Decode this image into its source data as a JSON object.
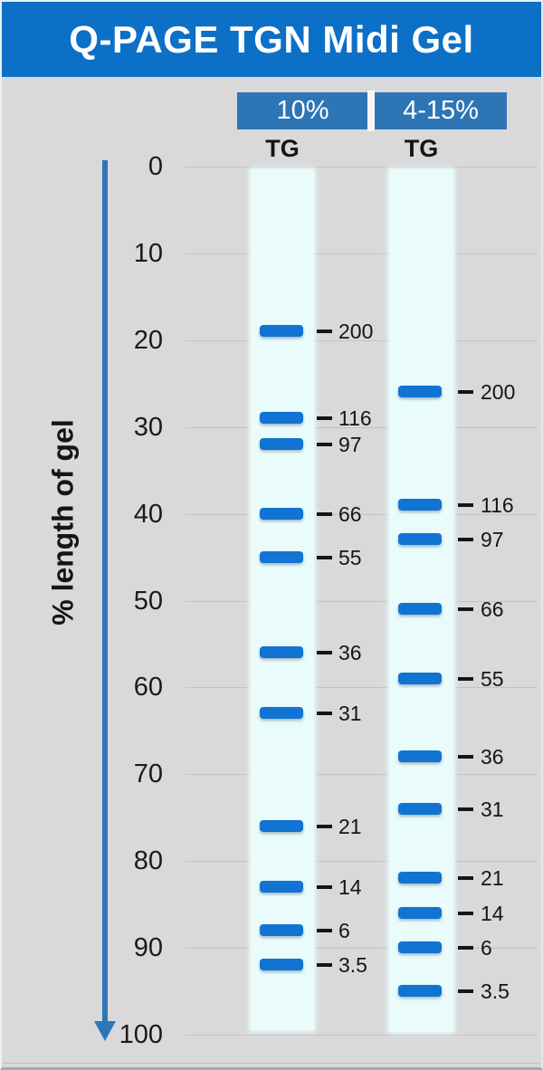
{
  "title": "Q-PAGE TGN Midi Gel",
  "y_axis": {
    "label": "% length of gel",
    "ticks": [
      0,
      10,
      20,
      30,
      40,
      50,
      60,
      70,
      80,
      90,
      100
    ]
  },
  "lanes": [
    {
      "header": "10%",
      "gel_type": "TG",
      "bands": [
        {
          "mw": "200",
          "pct": 19
        },
        {
          "mw": "116",
          "pct": 29
        },
        {
          "mw": "97",
          "pct": 32
        },
        {
          "mw": "66",
          "pct": 40
        },
        {
          "mw": "55",
          "pct": 45
        },
        {
          "mw": "36",
          "pct": 56
        },
        {
          "mw": "31",
          "pct": 63
        },
        {
          "mw": "21",
          "pct": 76
        },
        {
          "mw": "14",
          "pct": 83
        },
        {
          "mw": "6",
          "pct": 88
        },
        {
          "mw": "3.5",
          "pct": 92
        }
      ]
    },
    {
      "header": "4-15%",
      "gel_type": "TG",
      "bands": [
        {
          "mw": "200",
          "pct": 26
        },
        {
          "mw": "116",
          "pct": 39
        },
        {
          "mw": "97",
          "pct": 43
        },
        {
          "mw": "66",
          "pct": 51
        },
        {
          "mw": "55",
          "pct": 59
        },
        {
          "mw": "36",
          "pct": 68
        },
        {
          "mw": "31",
          "pct": 74
        },
        {
          "mw": "21",
          "pct": 82
        },
        {
          "mw": "14",
          "pct": 86
        },
        {
          "mw": "6",
          "pct": 90
        },
        {
          "mw": "3.5",
          "pct": 95
        }
      ]
    }
  ],
  "colors": {
    "banner_blue": "#0c70c6",
    "header_blue": "#2e75b6",
    "band_blue": "#1173d2",
    "lane_background": "#e9fcfb",
    "page_background": "#d9d9d9",
    "axis_arrow_blue": "#2e76b8",
    "gridline_gray": "#c3c3c3",
    "text_dark": "#151515"
  },
  "chart_data": {
    "type": "scatter",
    "title": "Q-PAGE TGN Midi Gel",
    "ylabel": "% length of gel",
    "ylim": [
      0,
      100
    ],
    "y_axis_inverted": true,
    "y_ticks": [
      0,
      10,
      20,
      30,
      40,
      50,
      60,
      70,
      80,
      90,
      100
    ],
    "grid": true,
    "legend_position": "top",
    "marker_mw_kda": [
      200,
      116,
      97,
      66,
      55,
      36,
      31,
      21,
      14,
      6,
      3.5
    ],
    "series": [
      {
        "name": "10% TG",
        "mw_kda": [
          200,
          116,
          97,
          66,
          55,
          36,
          31,
          21,
          14,
          6,
          3.5
        ],
        "pct_length_of_gel": [
          19,
          29,
          32,
          40,
          45,
          56,
          63,
          76,
          83,
          88,
          92
        ]
      },
      {
        "name": "4-15% TG",
        "mw_kda": [
          200,
          116,
          97,
          66,
          55,
          36,
          31,
          21,
          14,
          6,
          3.5
        ],
        "pct_length_of_gel": [
          26,
          39,
          43,
          51,
          59,
          68,
          74,
          82,
          86,
          90,
          95
        ]
      }
    ]
  }
}
